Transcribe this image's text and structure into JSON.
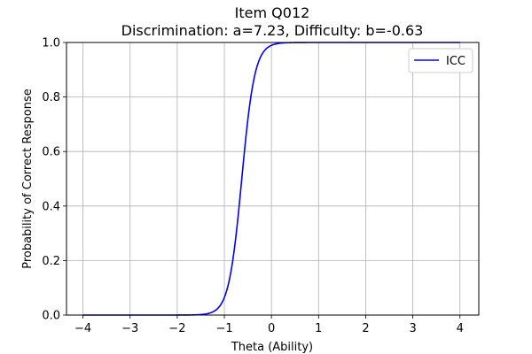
{
  "chart_data": {
    "type": "line",
    "title_line1": "Item Q012",
    "title_line2": "Discrimination: a=7.23, Difficulty: b=-0.63",
    "xlabel": "Theta (Ability)",
    "ylabel": "Probability of Correct Response",
    "xlim": [
      -4.35,
      4.4
    ],
    "ylim": [
      0,
      1
    ],
    "x_ticks": [
      -4,
      -3,
      -2,
      -1,
      0,
      1,
      2,
      3,
      4
    ],
    "x_tick_labels": [
      "−4",
      "−3",
      "−2",
      "−1",
      "0",
      "1",
      "2",
      "3",
      "4"
    ],
    "y_ticks": [
      0,
      0.2,
      0.4,
      0.6,
      0.8,
      1.0
    ],
    "y_tick_labels": [
      "0.0",
      "0.2",
      "0.4",
      "0.6",
      "0.8",
      "1.0"
    ],
    "grid": true,
    "legend_position": "top-right",
    "series": [
      {
        "name": "ICC",
        "color": "#0000ff",
        "model": "2PL logistic",
        "a": 7.23,
        "b": -0.63,
        "x_range": [
          -4,
          4
        ]
      }
    ]
  }
}
